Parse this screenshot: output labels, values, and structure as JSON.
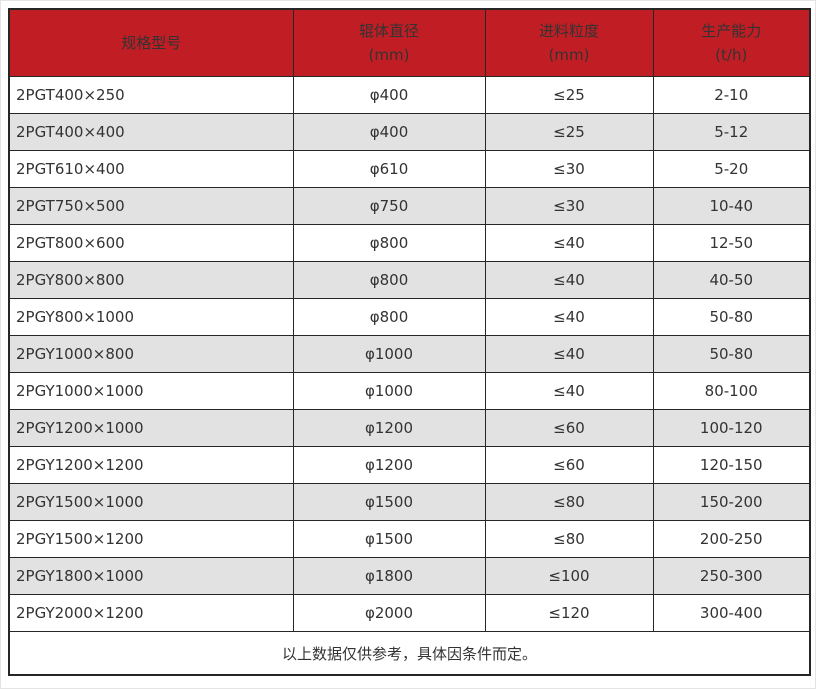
{
  "colors": {
    "header_bg": "#c01e24",
    "header_text": "#ffffff",
    "stripe_bg": "#e2e2e2",
    "border": "#262626",
    "body_text": "#333333"
  },
  "table": {
    "columns": [
      {
        "label": "规格型号",
        "unit": ""
      },
      {
        "label": "辊体直径",
        "unit": "(mm)"
      },
      {
        "label": "进料粒度",
        "unit": "(mm)"
      },
      {
        "label": "生产能力",
        "unit": "(t/h)"
      }
    ],
    "rows": [
      [
        "2PGT400×250",
        "φ400",
        "≤25",
        "2-10"
      ],
      [
        "2PGT400×400",
        "φ400",
        "≤25",
        "5-12"
      ],
      [
        "2PGT610×400",
        "φ610",
        "≤30",
        "5-20"
      ],
      [
        "2PGT750×500",
        "φ750",
        "≤30",
        "10-40"
      ],
      [
        "2PGT800×600",
        "φ800",
        "≤40",
        "12-50"
      ],
      [
        "2PGY800×800",
        "φ800",
        "≤40",
        "40-50"
      ],
      [
        "2PGY800×1000",
        "φ800",
        "≤40",
        "50-80"
      ],
      [
        "2PGY1000×800",
        "φ1000",
        "≤40",
        "50-80"
      ],
      [
        "2PGY1000×1000",
        "φ1000",
        "≤40",
        "80-100"
      ],
      [
        "2PGY1200×1000",
        "φ1200",
        "≤60",
        "100-120"
      ],
      [
        "2PGY1200×1200",
        "φ1200",
        "≤60",
        "120-150"
      ],
      [
        "2PGY1500×1000",
        "φ1500",
        "≤80",
        "150-200"
      ],
      [
        "2PGY1500×1200",
        "φ1500",
        "≤80",
        "200-250"
      ],
      [
        "2PGY1800×1000",
        "φ1800",
        "≤100",
        "250-300"
      ],
      [
        "2PGY2000×1200",
        "φ2000",
        "≤120",
        "300-400"
      ]
    ],
    "footnote": "以上数据仅供参考，具体因条件而定。"
  }
}
